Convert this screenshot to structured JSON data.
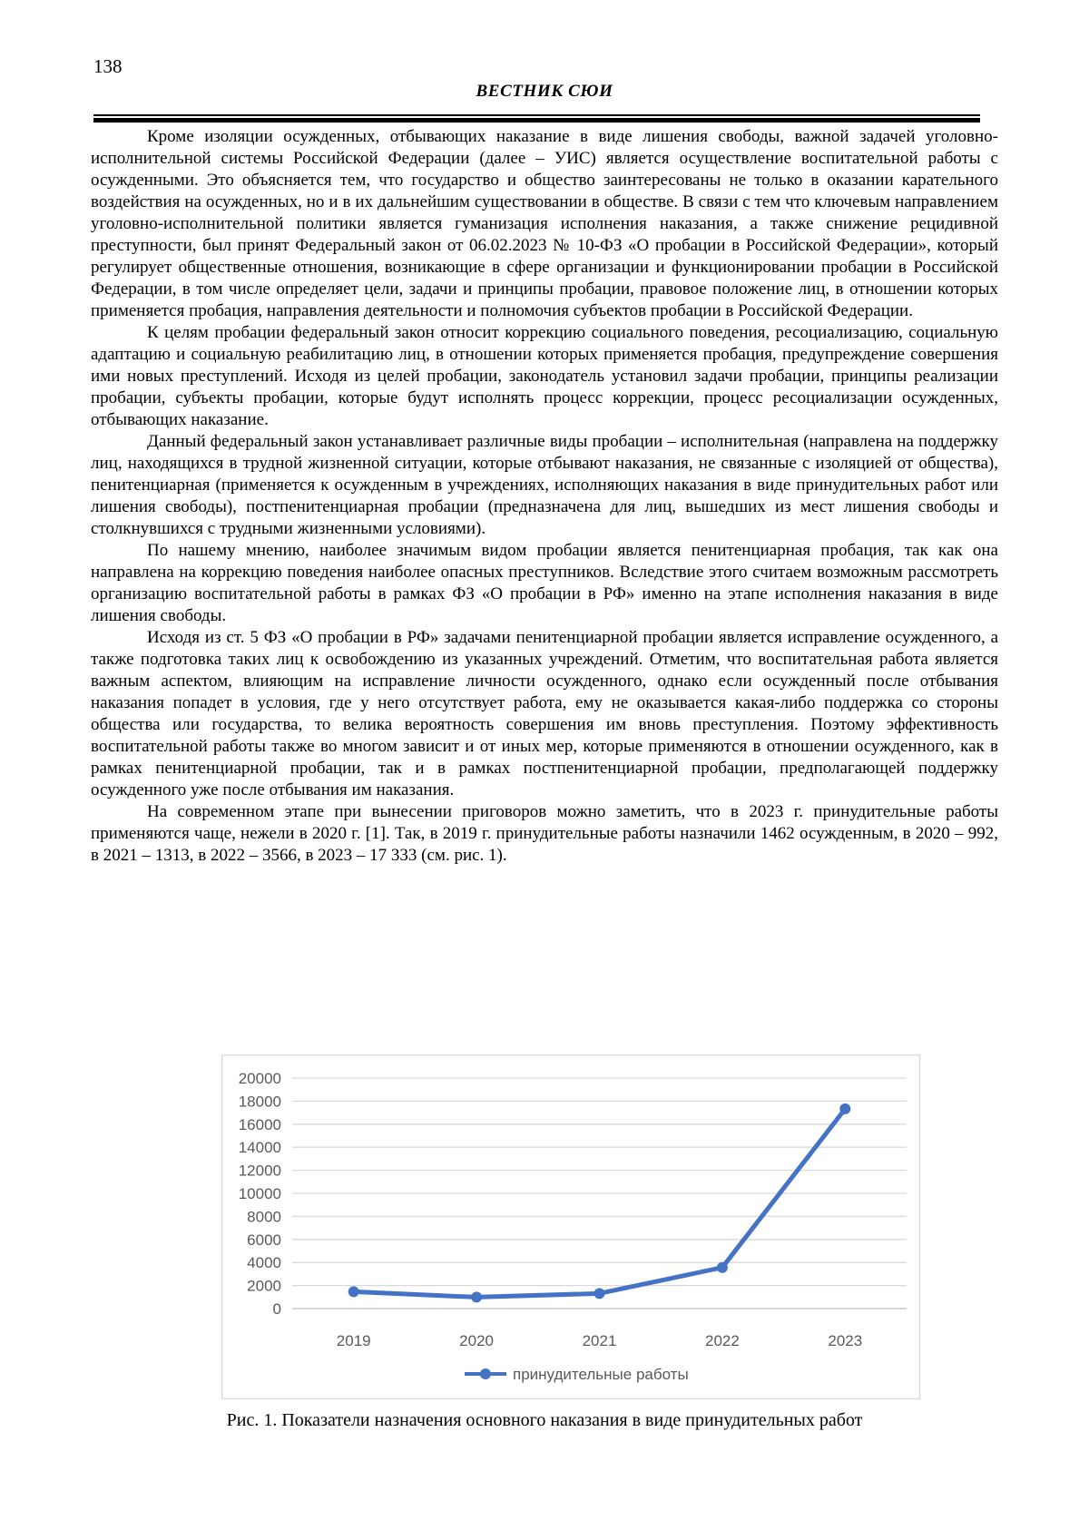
{
  "page": {
    "number": "138",
    "journal_title": "ВЕСТНИК СЮИ"
  },
  "article": {
    "paragraphs": [
      "Кроме изоляции осужденных, отбывающих наказание в виде лишения свободы, важной задачей уголовно-исполнительной системы Российской Федерации (далее – УИС) является осуществление воспитательной работы с осужденными. Это объясняется тем, что государство и общество заинтересованы не только в оказании карательного воздействия на осужденных, но и в их дальнейшим существовании в обществе. В связи с тем что ключевым направлением уголовно-исполнительной политики является гуманизация исполнения наказания, а также снижение рецидивной преступности, был принят Федеральный закон от 06.02.2023 № 10-ФЗ «О пробации в Российской Федерации», который регулирует общественные отношения, возникающие в сфере организации и функционировании пробации в Российской Федерации, в том числе определяет цели, задачи и принципы пробации, правовое положение лиц, в отношении которых применяется пробация, направления деятельности и полномочия субъектов пробации в Российской Федерации.",
      "К целям пробации федеральный закон относит коррекцию социального поведения, ресоциализацию, социальную адаптацию и социальную реабилитацию лиц, в отношении которых применяется пробация, предупреждение совершения ими новых преступлений. Исходя из целей пробации, законодатель установил задачи пробации, принципы реализации пробации, субъекты пробации, которые будут исполнять процесс коррекции, процесс ресоциализации осужденных, отбывающих наказание.",
      "Данный федеральный закон устанавливает различные виды пробации – исполнительная (направлена на поддержку лиц, находящихся в трудной жизненной ситуации, которые отбывают наказания, не связанные с изоляцией от общества), пенитенциарная (применяется к осужденным в учреждениях, исполняющих наказания в виде принудительных работ или лишения свободы), постпенитенциарная пробации (предназначена для лиц, вышедших из мест лишения свободы и столкнувшихся с трудными жизненными условиями).",
      "По нашему мнению, наиболее значимым видом пробации является пенитенциарная пробация, так как она направлена на коррекцию поведения наиболее опасных преступников. Вследствие этого считаем возможным рассмотреть организацию воспитательной работы в рамках ФЗ «О пробации в РФ» именно на этапе исполнения наказания в виде лишения свободы.",
      "Исходя из ст. 5 ФЗ «О пробации в РФ» задачами пенитенциарной пробации является исправление осужденного, а также подготовка таких лиц к освобождению из указанных учреждений. Отметим, что воспитательная работа является важным аспектом, влияющим на исправление личности осужденного, однако если осужденный после отбывания наказания попадет в условия, где у него отсутствует работа, ему не оказывается какая-либо поддержка со стороны общества или государства, то велика вероятность совершения им вновь преступления. Поэтому эффективность воспитательной работы также во многом зависит и от иных мер, которые применяются в отношении осужденного, как в рамках пенитенциарной пробации, так и в рамках постпенитенциарной пробации, предполагающей поддержку осужденного уже после отбывания им наказания.",
      "На современном этапе при вынесении приговоров можно заметить, что в 2023 г. принудительные работы применяются чаще, нежели в 2020 г. [1]. Так, в 2019 г. принудительные работы назначили 1462 осужденным, в 2020 – 992, в 2021 – 1313, в 2022 – 3566, в 2023 – 17 333 (см. рис. 1)."
    ]
  },
  "figure": {
    "caption": "Рис. 1. Показатели назначения основного наказания в виде принудительных работ"
  },
  "chart_data": {
    "type": "line",
    "title": "",
    "xlabel": "",
    "ylabel": "",
    "categories": [
      "2019",
      "2020",
      "2021",
      "2022",
      "2023"
    ],
    "series": [
      {
        "name": "принудительные работы",
        "values": [
          1462,
          992,
          1313,
          3566,
          17333
        ]
      }
    ],
    "ylim": [
      0,
      20000
    ],
    "ytick_step": 2000,
    "grid": true,
    "legend_position": "bottom",
    "line_color": "#4472C4",
    "grid_color": "#D9D9D9",
    "axis_color": "#BFBFBF",
    "label_color": "#595959",
    "frame_color": "#D9D9D9"
  }
}
